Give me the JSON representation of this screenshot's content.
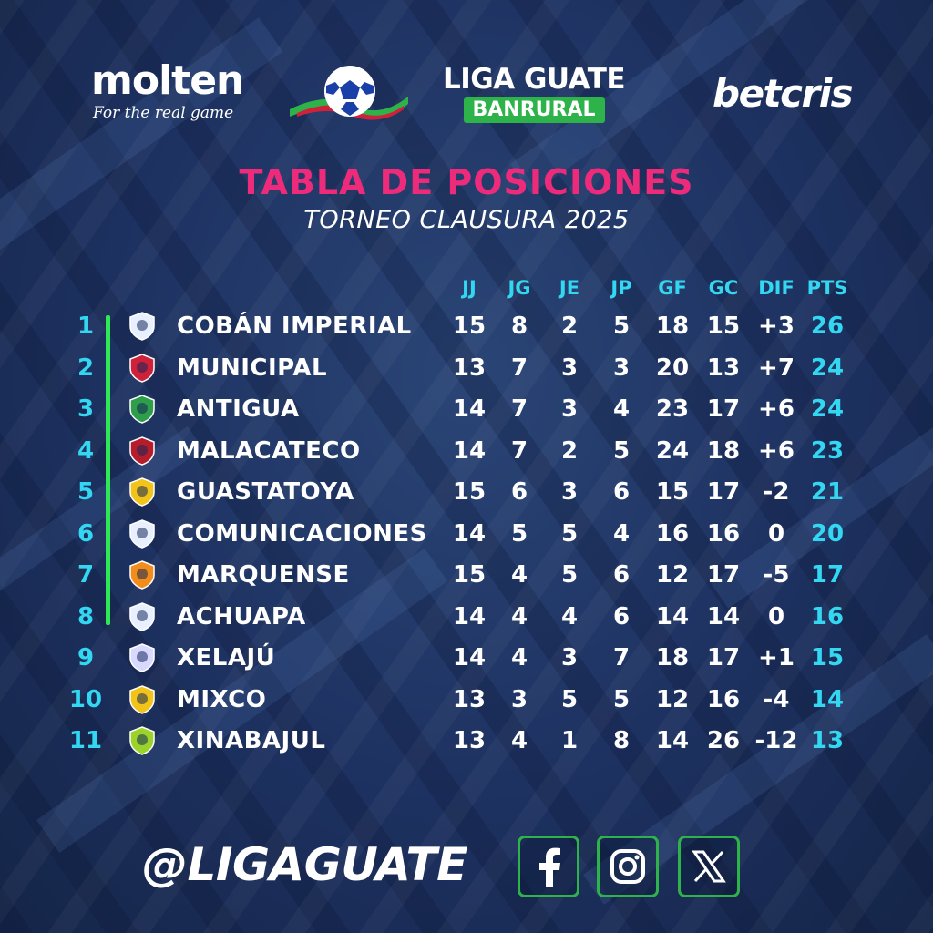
{
  "sponsors": {
    "molten": {
      "name": "molten",
      "tagline": "For the real game"
    },
    "league": {
      "title": "LIGA GUATE",
      "subtitle": "BANRURAL"
    },
    "betcris": {
      "name": "betcris"
    }
  },
  "title": "TABLA DE POSICIONES",
  "subtitle": "TORNEO CLAUSURA 2025",
  "columns": [
    "JJ",
    "JG",
    "JE",
    "JP",
    "GF",
    "GC",
    "DIF",
    "PTS"
  ],
  "rows": [
    {
      "pos": "1",
      "team": "COBÁN IMPERIAL",
      "jj": "15",
      "jg": "8",
      "je": "2",
      "jp": "5",
      "gf": "18",
      "gc": "15",
      "dif": "+3",
      "pts": "26"
    },
    {
      "pos": "2",
      "team": "MUNICIPAL",
      "jj": "13",
      "jg": "7",
      "je": "3",
      "jp": "3",
      "gf": "20",
      "gc": "13",
      "dif": "+7",
      "pts": "24"
    },
    {
      "pos": "3",
      "team": "ANTIGUA",
      "jj": "14",
      "jg": "7",
      "je": "3",
      "jp": "4",
      "gf": "23",
      "gc": "17",
      "dif": "+6",
      "pts": "24"
    },
    {
      "pos": "4",
      "team": "MALACATECO",
      "jj": "14",
      "jg": "7",
      "je": "2",
      "jp": "5",
      "gf": "24",
      "gc": "18",
      "dif": "+6",
      "pts": "23"
    },
    {
      "pos": "5",
      "team": "GUASTATOYA",
      "jj": "15",
      "jg": "6",
      "je": "3",
      "jp": "6",
      "gf": "15",
      "gc": "17",
      "dif": "-2",
      "pts": "21"
    },
    {
      "pos": "6",
      "team": "COMUNICACIONES",
      "jj": "14",
      "jg": "5",
      "je": "5",
      "jp": "4",
      "gf": "16",
      "gc": "16",
      "dif": "0",
      "pts": "20"
    },
    {
      "pos": "7",
      "team": "MARQUENSE",
      "jj": "15",
      "jg": "4",
      "je": "5",
      "jp": "6",
      "gf": "12",
      "gc": "17",
      "dif": "-5",
      "pts": "17"
    },
    {
      "pos": "8",
      "team": "ACHUAPA",
      "jj": "14",
      "jg": "4",
      "je": "4",
      "jp": "6",
      "gf": "14",
      "gc": "14",
      "dif": "0",
      "pts": "16"
    },
    {
      "pos": "9",
      "team": "XELAJÚ",
      "jj": "14",
      "jg": "4",
      "je": "3",
      "jp": "7",
      "gf": "18",
      "gc": "17",
      "dif": "+1",
      "pts": "15"
    },
    {
      "pos": "10",
      "team": "MIXCO",
      "jj": "13",
      "jg": "3",
      "je": "5",
      "jp": "5",
      "gf": "12",
      "gc": "16",
      "dif": "-4",
      "pts": "14"
    },
    {
      "pos": "11",
      "team": "XINABAJUL",
      "jj": "13",
      "jg": "4",
      "je": "1",
      "jp": "8",
      "gf": "14",
      "gc": "26",
      "dif": "-12",
      "pts": "13"
    }
  ],
  "crest_colors": [
    "#e8f0ff",
    "#d0213a",
    "#2e9e4a",
    "#b71c2c",
    "#f2c318",
    "#e8f0ff",
    "#f28c1a",
    "#e8f0ff",
    "#d9d9ff",
    "#f2c318",
    "#9cd32a"
  ],
  "qualification_marker_color": "#2ee855",
  "footer": {
    "handle": "@LIGAGUATE",
    "social_icons": [
      "facebook-icon",
      "instagram-icon",
      "x-icon"
    ]
  },
  "colors": {
    "accent_pink": "#ee2a7b",
    "accent_cyan": "#33d7f2",
    "brand_green": "#2eb34a"
  }
}
